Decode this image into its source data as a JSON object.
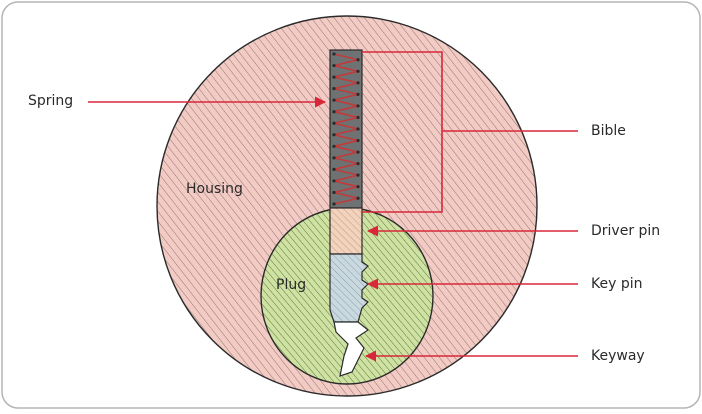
{
  "diagram": {
    "labels": {
      "spring": "Spring",
      "bible": "Bible",
      "housing": "Housing",
      "driver_pin": "Driver pin",
      "plug": "Plug",
      "key_pin": "Key pin",
      "keyway": "Keyway"
    },
    "colors": {
      "frame_border": "#b5b5b5",
      "housing_fill": "#f3cbc5",
      "housing_hatch": "#8a6a66",
      "plug_fill": "#cfe2a3",
      "plug_hatch": "#4d6d2c",
      "spring_channel": "#6f7273",
      "spring_coil": "#c23a3a",
      "driver_pin_fill": "#f2d4be",
      "key_pin_fill": "#c9d9df",
      "keyway_fill": "#ffffff",
      "leader_line": "#d9273a",
      "outline": "#2b2b2b",
      "label_text": "#2a2a2a"
    }
  }
}
